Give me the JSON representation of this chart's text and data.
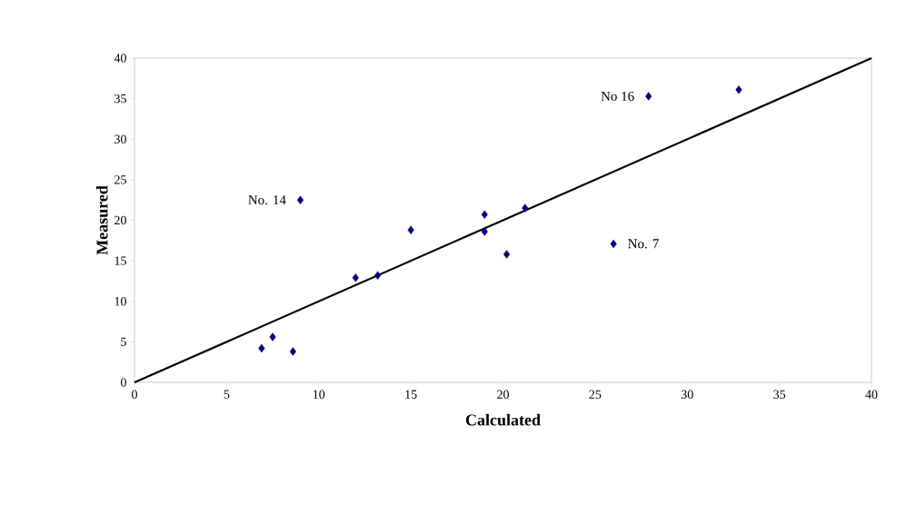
{
  "chart_data": {
    "type": "scatter",
    "xlabel": "Calculated",
    "ylabel": "Measured",
    "grid": false,
    "xlim": [
      0,
      40
    ],
    "ylim": [
      0,
      40
    ],
    "xticks": [
      0,
      5,
      10,
      15,
      20,
      25,
      30,
      35,
      40
    ],
    "yticks": [
      0,
      5,
      10,
      15,
      20,
      25,
      30,
      35,
      40
    ],
    "series": [
      {
        "marker": "diamond",
        "color": "#000080",
        "x": [
          6.9,
          7.5,
          8.6,
          9.0,
          12.0,
          13.2,
          15.0,
          19.0,
          19.0,
          20.2,
          21.2,
          26.0,
          27.9,
          32.8
        ],
        "values": [
          4.2,
          5.6,
          3.8,
          22.5,
          12.9,
          13.2,
          18.8,
          20.7,
          18.6,
          15.8,
          21.5,
          17.1,
          35.3,
          36.1
        ]
      },
      {
        "type": "line",
        "color": "#000000",
        "x": [
          0,
          40
        ],
        "values": [
          0,
          40
        ]
      }
    ],
    "annotations": [
      {
        "text": "No. 14",
        "x": 9.0,
        "y": 22.5
      },
      {
        "text": "No. 7",
        "x": 26.0,
        "y": 17.1
      },
      {
        "text": "No 16",
        "x": 27.9,
        "y": 35.3
      }
    ]
  }
}
